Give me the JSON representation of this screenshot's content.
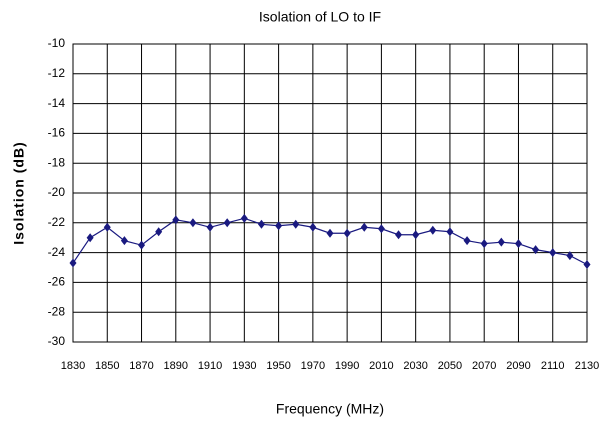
{
  "chart_data": {
    "type": "line",
    "title": "Isolation of LO to IF",
    "xlabel": "Frequency (MHz)",
    "ylabel": "Isolation (dB)",
    "x": [
      1830,
      1840,
      1850,
      1860,
      1870,
      1880,
      1890,
      1900,
      1910,
      1920,
      1930,
      1940,
      1950,
      1960,
      1970,
      1980,
      1990,
      2000,
      2010,
      2020,
      2030,
      2040,
      2050,
      2060,
      2070,
      2080,
      2090,
      2100,
      2110,
      2120,
      2130
    ],
    "series": [
      {
        "name": "Isolation",
        "color": "#1a1a80",
        "values": [
          -24.7,
          -23.0,
          -22.3,
          -23.2,
          -23.5,
          -22.6,
          -21.8,
          -22.0,
          -22.3,
          -22.0,
          -21.7,
          -22.1,
          -22.2,
          -22.1,
          -22.3,
          -22.7,
          -22.7,
          -22.3,
          -22.4,
          -22.8,
          -22.8,
          -22.5,
          -22.6,
          -23.2,
          -23.4,
          -23.3,
          -23.4,
          -23.8,
          -24.0,
          -24.2,
          -24.8
        ]
      }
    ],
    "xlim": [
      1830,
      2130
    ],
    "xticks": [
      1830,
      1850,
      1870,
      1890,
      1910,
      1930,
      1950,
      1970,
      1990,
      2010,
      2030,
      2050,
      2070,
      2090,
      2110,
      2130
    ],
    "ylim": [
      -30,
      -10
    ],
    "yticks": [
      -30,
      -28,
      -26,
      -24,
      -22,
      -20,
      -18,
      -16,
      -14,
      -12,
      -10
    ],
    "grid": true
  }
}
